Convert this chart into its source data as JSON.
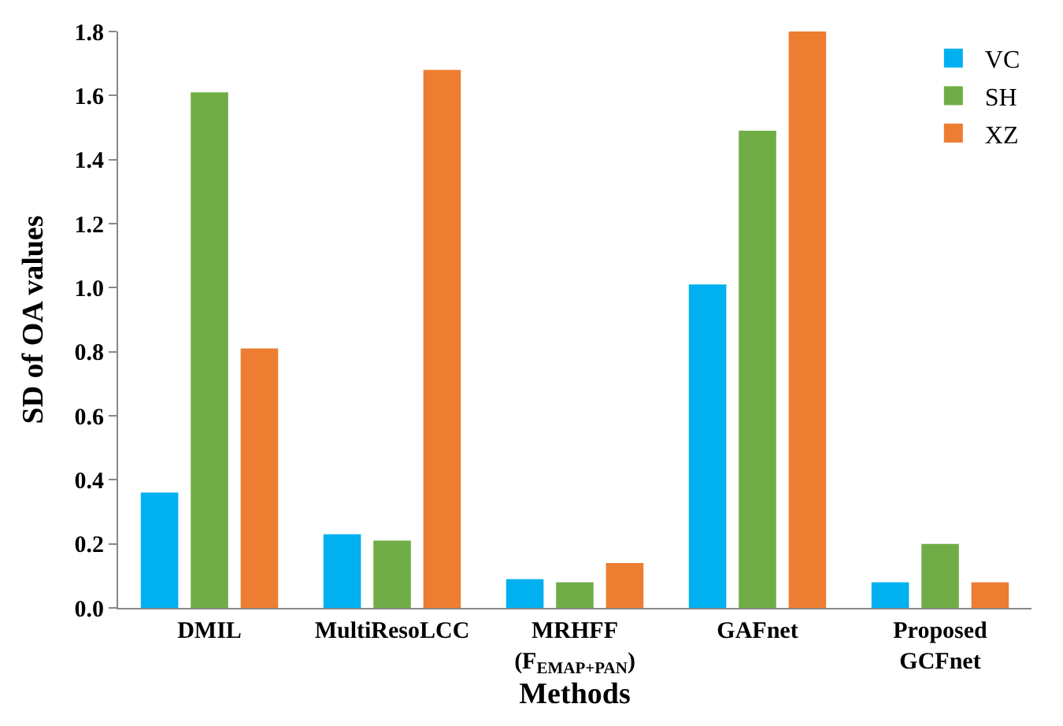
{
  "chart_data": {
    "type": "bar",
    "xlabel": "Methods",
    "ylabel": "SD of OA values",
    "categories": [
      "DMIL",
      "MultiResoLCC",
      "MRHFF\n(F$_{EMAP+PAN}$)",
      "GAFnet",
      "Proposed\nGCFnet"
    ],
    "series": [
      {
        "name": "VC",
        "color": "#00b0f0",
        "values": [
          0.36,
          0.23,
          0.09,
          1.01,
          0.08
        ]
      },
      {
        "name": "SH",
        "color": "#70ad47",
        "values": [
          1.61,
          0.21,
          0.08,
          1.49,
          0.2
        ]
      },
      {
        "name": "XZ",
        "color": "#ed7d31",
        "values": [
          0.81,
          1.68,
          0.14,
          1.8,
          0.08
        ]
      }
    ],
    "ylim": [
      0,
      1.8
    ],
    "yticks": [
      {
        "value": 0,
        "label": "0.0"
      },
      {
        "value": 0.2,
        "label": "0.2"
      },
      {
        "value": 0.4,
        "label": "0.4"
      },
      {
        "value": 0.6,
        "label": "0.6"
      },
      {
        "value": 0.8,
        "label": "0.8"
      },
      {
        "value": 1.0,
        "label": "1.0"
      },
      {
        "value": 1.2,
        "label": "1.2"
      },
      {
        "value": 1.4,
        "label": "1.4"
      },
      {
        "value": 1.6,
        "label": "1.6"
      },
      {
        "value": 1.8,
        "label": "1.8"
      }
    ],
    "grid": false,
    "legend": "top right"
  }
}
